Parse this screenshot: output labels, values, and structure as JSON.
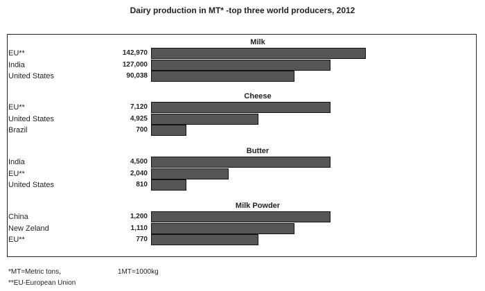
{
  "chart_data": {
    "type": "bar",
    "orientation": "horizontal",
    "title": "Dairy production in MT*  -top three world producers, 2012",
    "groups": [
      {
        "name": "Milk",
        "categories": [
          "EU**",
          "India",
          "United States"
        ],
        "values": [
          142970,
          127000,
          90038
        ],
        "value_labels": [
          "142,970",
          "127,000",
          "90,038"
        ],
        "bar_fraction": [
          1.0,
          0.835,
          0.668
        ]
      },
      {
        "name": "Cheese",
        "categories": [
          "EU**",
          "United States",
          "Brazil"
        ],
        "values": [
          7120,
          4925,
          700
        ],
        "value_labels": [
          "7,120",
          "4,925",
          "700"
        ],
        "bar_fraction": [
          0.835,
          0.5,
          0.165
        ]
      },
      {
        "name": "Butter",
        "categories": [
          "India",
          "EU**",
          "United States"
        ],
        "values": [
          4500,
          2040,
          810
        ],
        "value_labels": [
          "4,500",
          "2,040",
          "810"
        ],
        "bar_fraction": [
          0.835,
          0.361,
          0.165
        ]
      },
      {
        "name": "Milk Powder",
        "categories": [
          "China",
          "New Zeland",
          "EU**"
        ],
        "values": [
          1200,
          1110,
          770
        ],
        "value_labels": [
          "1,200",
          "1,110",
          "770"
        ],
        "bar_fraction": [
          0.835,
          0.668,
          0.5
        ]
      }
    ],
    "grid": false,
    "bar_color": "#555555"
  },
  "footnotes": {
    "mt": "*MT=Metric tons,",
    "conversion": "1MT=1000kg",
    "eu": "**EU-European Union"
  }
}
